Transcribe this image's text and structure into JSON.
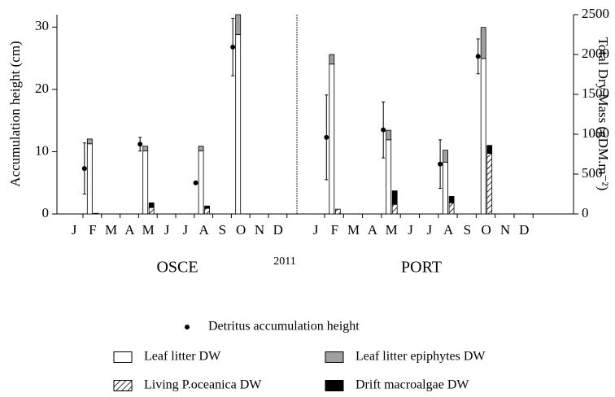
{
  "chart_data": {
    "type": "bar",
    "ylabel": "Accumulation height (cm)",
    "y2label": "Total Dry Mass (gDM.m⁻²)",
    "xlabel": "2011",
    "ylim": [
      0,
      32
    ],
    "yticks": [
      0,
      10,
      20,
      30
    ],
    "y2lim": [
      0,
      2500
    ],
    "y2ticks": [
      0,
      500,
      1000,
      1500,
      2000,
      2500
    ],
    "categories": [
      "J",
      "F",
      "M",
      "A",
      "M",
      "J",
      "J",
      "A",
      "S",
      "O",
      "N",
      "D"
    ],
    "panels": [
      "OSCE",
      "PORT"
    ],
    "series": [
      {
        "name": "Detritus accumulation height",
        "color": "#000000",
        "axis": "y",
        "values": [
          [
            null,
            7.3,
            null,
            null,
            11.2,
            null,
            null,
            5.0,
            null,
            26.8,
            null,
            null
          ],
          [
            null,
            12.3,
            null,
            null,
            13.5,
            null,
            null,
            8.0,
            null,
            25.3,
            null,
            null
          ]
        ],
        "errors": [
          [
            null,
            4.1,
            null,
            null,
            1.1,
            null,
            null,
            null,
            null,
            4.6,
            null,
            null
          ],
          [
            null,
            6.8,
            null,
            null,
            4.5,
            null,
            null,
            3.9,
            null,
            2.8,
            null,
            null
          ]
        ]
      },
      {
        "name": "Leaf litter DW",
        "color": "#ffffff",
        "axis": "y2",
        "values": [
          [
            null,
            880,
            null,
            null,
            790,
            null,
            null,
            790,
            null,
            2250,
            null,
            null
          ],
          [
            null,
            1880,
            null,
            null,
            930,
            null,
            null,
            650,
            null,
            1950,
            null,
            null
          ]
        ]
      },
      {
        "name": "Leaf litter epiphytes DW",
        "color": "#a0a0a0",
        "axis": "y2",
        "values": [
          [
            null,
            60,
            null,
            null,
            60,
            null,
            null,
            60,
            null,
            250,
            null,
            null
          ],
          [
            null,
            120,
            null,
            null,
            120,
            null,
            null,
            150,
            null,
            390,
            null,
            null
          ]
        ]
      },
      {
        "name": "Living P.oceanica DW",
        "color": "#ffffff",
        "hatch": true,
        "axis": "y2",
        "values": [
          [
            null,
            8,
            null,
            null,
            80,
            null,
            null,
            70,
            null,
            null,
            null,
            null
          ],
          [
            null,
            60,
            null,
            null,
            120,
            null,
            null,
            140,
            null,
            760,
            null,
            null
          ]
        ]
      },
      {
        "name": "Drift macroalgae DW",
        "color": "#000000",
        "axis": "y2",
        "values": [
          [
            null,
            null,
            null,
            null,
            60,
            null,
            null,
            30,
            null,
            null,
            null,
            null
          ],
          [
            null,
            null,
            null,
            null,
            170,
            null,
            null,
            80,
            null,
            100,
            null,
            null
          ]
        ]
      }
    ]
  }
}
